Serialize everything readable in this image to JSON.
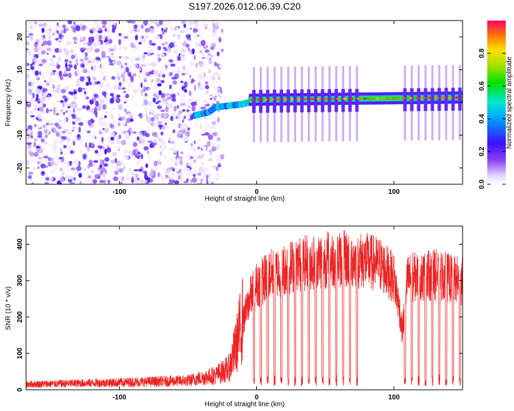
{
  "chart_data": [
    {
      "type": "heatmap",
      "title": "S197.2026.012.06.39.C20",
      "xlabel": "Height of straight line (km)",
      "ylabel": "Frequency (Hz)",
      "xlim": [
        -168,
        150
      ],
      "ylim": [
        -25,
        25
      ],
      "x_ticks": [
        -100,
        0,
        100
      ],
      "y_ticks": [
        -20,
        -10,
        0,
        10,
        20
      ],
      "colorbar": {
        "label": "Normalized spectral amplitude",
        "range": [
          0,
          1
        ],
        "ticks": [
          "0.0",
          "0.2",
          "0.4",
          "0.6",
          "0.8"
        ]
      },
      "features": {
        "noise_region_x": [
          -168,
          -25
        ],
        "transition_points": [
          [
            -45,
            -4
          ],
          [
            -35,
            -3
          ],
          [
            -30,
            -1.5
          ],
          [
            -20,
            -1
          ],
          [
            -10,
            -0.5
          ],
          [
            0,
            0.6
          ]
        ],
        "tone_region_x": [
          -5,
          150
        ],
        "tone_frequency_hz": 0.8,
        "tone_frequency_end_hz": 1.5
      }
    },
    {
      "type": "line",
      "title": "",
      "xlabel": "Height of straight line (km)",
      "ylabel": "SNR (10 * v/v)",
      "xlim": [
        -168,
        150
      ],
      "ylim": [
        0,
        450
      ],
      "x_ticks": [
        -100,
        0,
        100
      ],
      "y_ticks": [
        0,
        100,
        200,
        300,
        400
      ],
      "series": [
        {
          "name": "SNR",
          "color": "#ee2222",
          "envelope": {
            "x": [
              -168,
              -100,
              -50,
              -30,
              -20,
              -15,
              -10,
              -5,
              0,
              10,
              30,
              50,
              70,
              80,
              90,
              100,
              104,
              106,
              110,
              130,
              150
            ],
            "y": [
              15,
              20,
              25,
              40,
              60,
              120,
              200,
              270,
              310,
              340,
              370,
              385,
              385,
              380,
              370,
              330,
              240,
              170,
              330,
              340,
              320
            ]
          },
          "dropouts_x": [
            -2,
            3,
            8,
            13,
            18,
            23,
            28,
            33,
            38,
            43,
            48,
            53,
            58,
            63,
            68,
            73,
            108,
            113,
            118,
            123,
            128,
            133,
            138,
            143,
            148
          ]
        }
      ]
    }
  ]
}
